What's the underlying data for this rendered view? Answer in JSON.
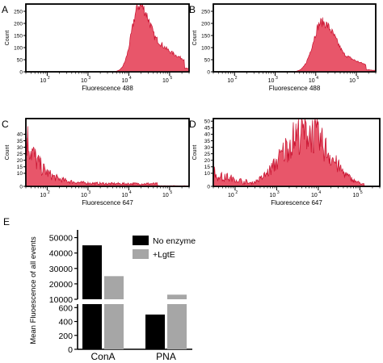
{
  "chart_data": [
    {
      "panel": "A",
      "type": "area",
      "xlabel": "Fluorescence 488",
      "ylabel": "Count",
      "x_scale": "log",
      "xlim": [
        30,
        300000
      ],
      "ylim": [
        0,
        280
      ],
      "x_ticks": [
        "10^2",
        "10^3",
        "10^4",
        "10^5"
      ],
      "y_ticks": [
        "0",
        "50",
        "100",
        "150",
        "200",
        "250"
      ],
      "fill_color": "#e8566a",
      "line_color": "#c8102e",
      "peak": {
        "x": 18000,
        "y": 275,
        "width_decades": 0.33,
        "tail_decades": 0.7
      }
    },
    {
      "panel": "B",
      "type": "area",
      "xlabel": "Fluorescence 488",
      "ylabel": "Count",
      "x_scale": "log",
      "xlim": [
        30,
        300000
      ],
      "ylim": [
        0,
        280
      ],
      "x_ticks": [
        "10^2",
        "10^3",
        "10^4",
        "10^5"
      ],
      "y_ticks": [
        "0",
        "50",
        "100",
        "150",
        "200",
        "250"
      ],
      "fill_color": "#e8566a",
      "line_color": "#c8102e",
      "peak": {
        "x": 14000,
        "y": 205,
        "width_decades": 0.38,
        "tail_decades": 0.6
      }
    },
    {
      "panel": "C",
      "type": "area",
      "xlabel": "Fluorescence 647",
      "ylabel": "Count",
      "x_scale": "log",
      "xlim": [
        30,
        300000
      ],
      "ylim": [
        0,
        52
      ],
      "x_ticks": [
        "10^2",
        "10^3",
        "10^4",
        "10^5"
      ],
      "y_ticks": [
        "0",
        "10",
        "15",
        "20",
        "25",
        "30",
        "35",
        "40"
      ],
      "y_tick_values": [
        0,
        10,
        15,
        20,
        25,
        30,
        35,
        40
      ],
      "fill_color": "#e8566a",
      "line_color": "#c8102e",
      "decay": {
        "start_y": 40,
        "floor_y": 2,
        "decades": 1.0
      }
    },
    {
      "panel": "D",
      "type": "area",
      "xlabel": "Fluorescence 647",
      "ylabel": "Count",
      "x_scale": "log",
      "xlim": [
        30,
        300000
      ],
      "ylim": [
        0,
        52
      ],
      "x_ticks": [
        "10^2",
        "10^3",
        "10^4",
        "10^5"
      ],
      "y_ticks": [
        "0",
        "10",
        "15",
        "20",
        "25",
        "30",
        "35",
        "40",
        "45",
        "50"
      ],
      "y_tick_values": [
        0,
        10,
        15,
        20,
        25,
        30,
        35,
        40,
        45,
        50
      ],
      "fill_color": "#e8566a",
      "line_color": "#c8102e",
      "peak": {
        "x": 5000,
        "y": 42,
        "width_decades": 0.55,
        "left_floor_y": 10
      }
    },
    {
      "panel": "E",
      "type": "bar",
      "ylabel": "Mean Fluoescence of all events",
      "categories": [
        "ConA",
        "PNA"
      ],
      "series": [
        {
          "name": "No enzyme",
          "color": "#000000",
          "values": [
            45000,
            500
          ]
        },
        {
          "name": "+LgtE",
          "color": "#a6a6a6",
          "values": [
            25000,
            13000
          ]
        }
      ],
      "axis_break": true,
      "upper_segment": {
        "ylim": [
          10000,
          55000
        ],
        "ticks": [
          10000,
          20000,
          30000,
          40000,
          50000
        ]
      },
      "lower_segment": {
        "ylim": [
          0,
          650
        ],
        "ticks": [
          0,
          200,
          400,
          600
        ]
      },
      "legend_position": "top-right"
    }
  ],
  "panel_letters": [
    "A",
    "B",
    "C",
    "D",
    "E"
  ],
  "tick_labels": {
    "base": "10",
    "exps": [
      "2",
      "3",
      "4",
      "5"
    ]
  },
  "e_tick_labels_upper": [
    "10000",
    "20000",
    "30000",
    "40000",
    "50000"
  ],
  "e_tick_labels_lower": [
    "0",
    "200",
    "400",
    "600"
  ]
}
